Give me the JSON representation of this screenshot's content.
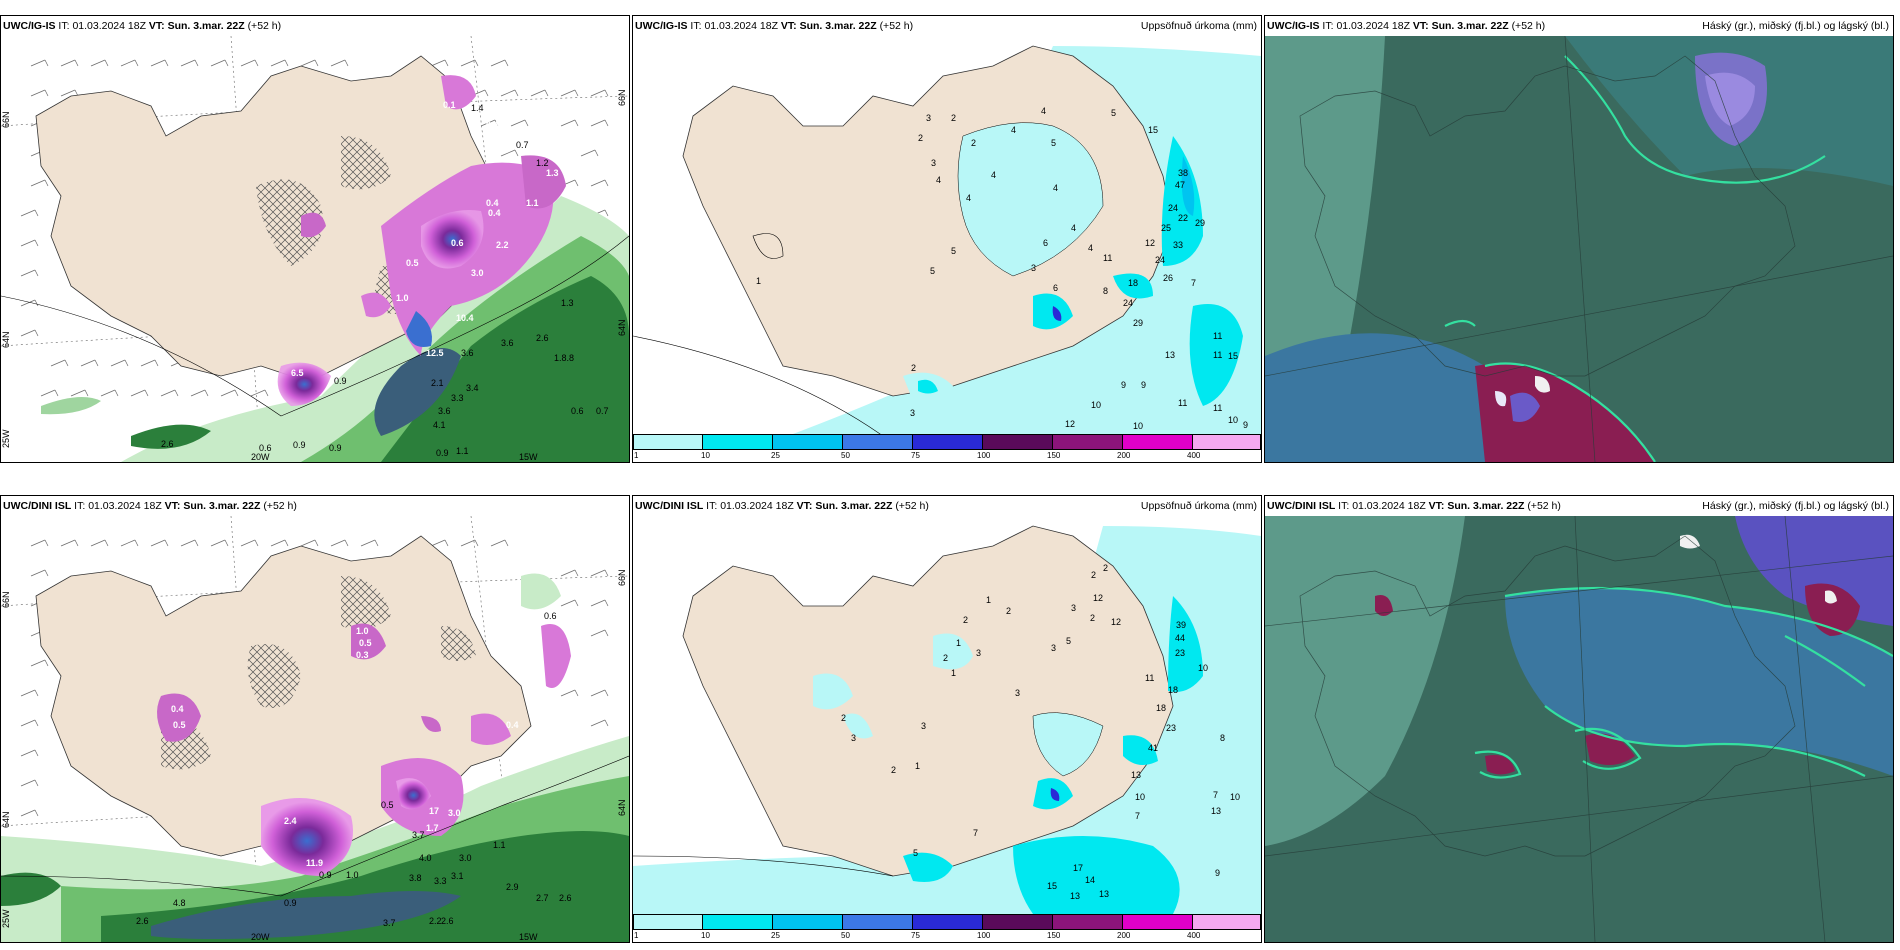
{
  "panels": [
    {
      "model": "UWC/IG-IS",
      "it_label": "IT:",
      "it": "01.03.2024 18Z",
      "vt_label": "VT:",
      "vt": "Sun. 3.mar. 22Z",
      "lead": "(+52 h)",
      "right_title": ""
    },
    {
      "model": "UWC/IG-IS",
      "it_label": "IT:",
      "it": "01.03.2024 18Z",
      "vt_label": "VT:",
      "vt": "Sun. 3.mar. 22Z",
      "lead": "(+52 h)",
      "right_title": "Uppsöfnuð úrkoma (mm)"
    },
    {
      "model": "UWC/IG-IS",
      "it_label": "IT:",
      "it": "01.03.2024 18Z",
      "vt_label": "VT:",
      "vt": "Sun. 3.mar. 22Z",
      "lead": "(+52 h)",
      "right_title": "Háský (gr.), miðský (fj.bl.) og lágský (bl.)"
    },
    {
      "model": "UWC/DINI ISL",
      "it_label": "IT:",
      "it": "01.03.2024 18Z",
      "vt_label": "VT:",
      "vt": "Sun. 3.mar. 22Z",
      "lead": "(+52 h)",
      "right_title": ""
    },
    {
      "model": "UWC/DINI ISL",
      "it_label": "IT:",
      "it": "01.03.2024 18Z",
      "vt_label": "VT:",
      "vt": "Sun. 3.mar. 22Z",
      "lead": "(+52 h)",
      "right_title": "Uppsöfnuð úrkoma (mm)"
    },
    {
      "model": "UWC/DINI ISL",
      "it_label": "IT:",
      "it": "01.03.2024 18Z",
      "vt_label": "VT:",
      "vt": "Sun. 3.mar. 22Z",
      "lead": "(+52 h)",
      "right_title": "Háský (gr.), miðský (fj.bl.) og lágský (bl.)"
    }
  ],
  "axis_labels": {
    "lat66": "66N",
    "lat64": "64N",
    "lon25": "25W",
    "lon20": "20W",
    "lon15": "15W"
  },
  "colorbar": {
    "ticks": [
      "1",
      "10",
      "25",
      "50",
      "75",
      "100",
      "150",
      "200",
      "400"
    ],
    "colors": [
      "#b8f7f7",
      "#00e8f0",
      "#00c4f0",
      "#3c78e6",
      "#2a2ad6",
      "#5a0a5a",
      "#8c147a",
      "#e000c8",
      "#f5a8f0"
    ]
  },
  "map_values": {
    "panel1": [
      "0.1",
      "1.4",
      "0.4",
      "0.7",
      "1.2",
      "1.3",
      "0.4",
      "1.1",
      "2.2",
      "3.0",
      "1.0",
      "0.5",
      "0.6",
      "0.4",
      "10.4",
      "12.5",
      "3.6",
      "3.6",
      "2.6",
      "1.3",
      "1.8.8",
      "2.1",
      "3.4",
      "3.6",
      "3.3",
      "4.1",
      "0.6",
      "0.7",
      "6.5",
      "0.9",
      "2.6",
      "0.6",
      "0.9",
      "0.9",
      "0.9",
      "1.1"
    ],
    "panel2": [
      "2",
      "4",
      "4",
      "2",
      "3",
      "3",
      "5",
      "5",
      "2",
      "4",
      "4",
      "4",
      "4",
      "6",
      "4",
      "3",
      "5",
      "15",
      "38",
      "47",
      "24",
      "22",
      "33",
      "25",
      "24",
      "26",
      "29",
      "7",
      "12",
      "11",
      "6",
      "4",
      "8",
      "18",
      "24",
      "29",
      "11",
      "11",
      "13",
      "15",
      "9",
      "9",
      "10",
      "11",
      "11",
      "10",
      "12",
      "10",
      "9",
      "3",
      "5",
      "2",
      "1"
    ],
    "panel4": [
      "0.6",
      "1.0",
      "0.5",
      "0.3",
      "0.4",
      "0.5",
      "0.4",
      "2.4",
      "11.9",
      "1.7",
      "0.9",
      "1.0",
      "0.5",
      "17",
      "3.0",
      "3.7",
      "4.0",
      "3.0",
      "3.8",
      "3.3",
      "3.1",
      "1.1",
      "4.8",
      "2.6",
      "0.9",
      "3.7",
      "2.2",
      "2.6",
      "2.9",
      "2.7",
      "2.6"
    ],
    "panel5": [
      "2",
      "2",
      "12",
      "2",
      "3",
      "5",
      "3",
      "2",
      "1",
      "12",
      "39",
      "44",
      "23",
      "10",
      "11",
      "1",
      "2",
      "2",
      "3",
      "1",
      "3",
      "3",
      "2",
      "8",
      "18",
      "18",
      "23",
      "41",
      "13",
      "10",
      "7",
      "7",
      "10",
      "13",
      "17",
      "14",
      "15",
      "13",
      "13",
      "9",
      "5",
      "7",
      "1",
      "2",
      "3"
    ]
  }
}
